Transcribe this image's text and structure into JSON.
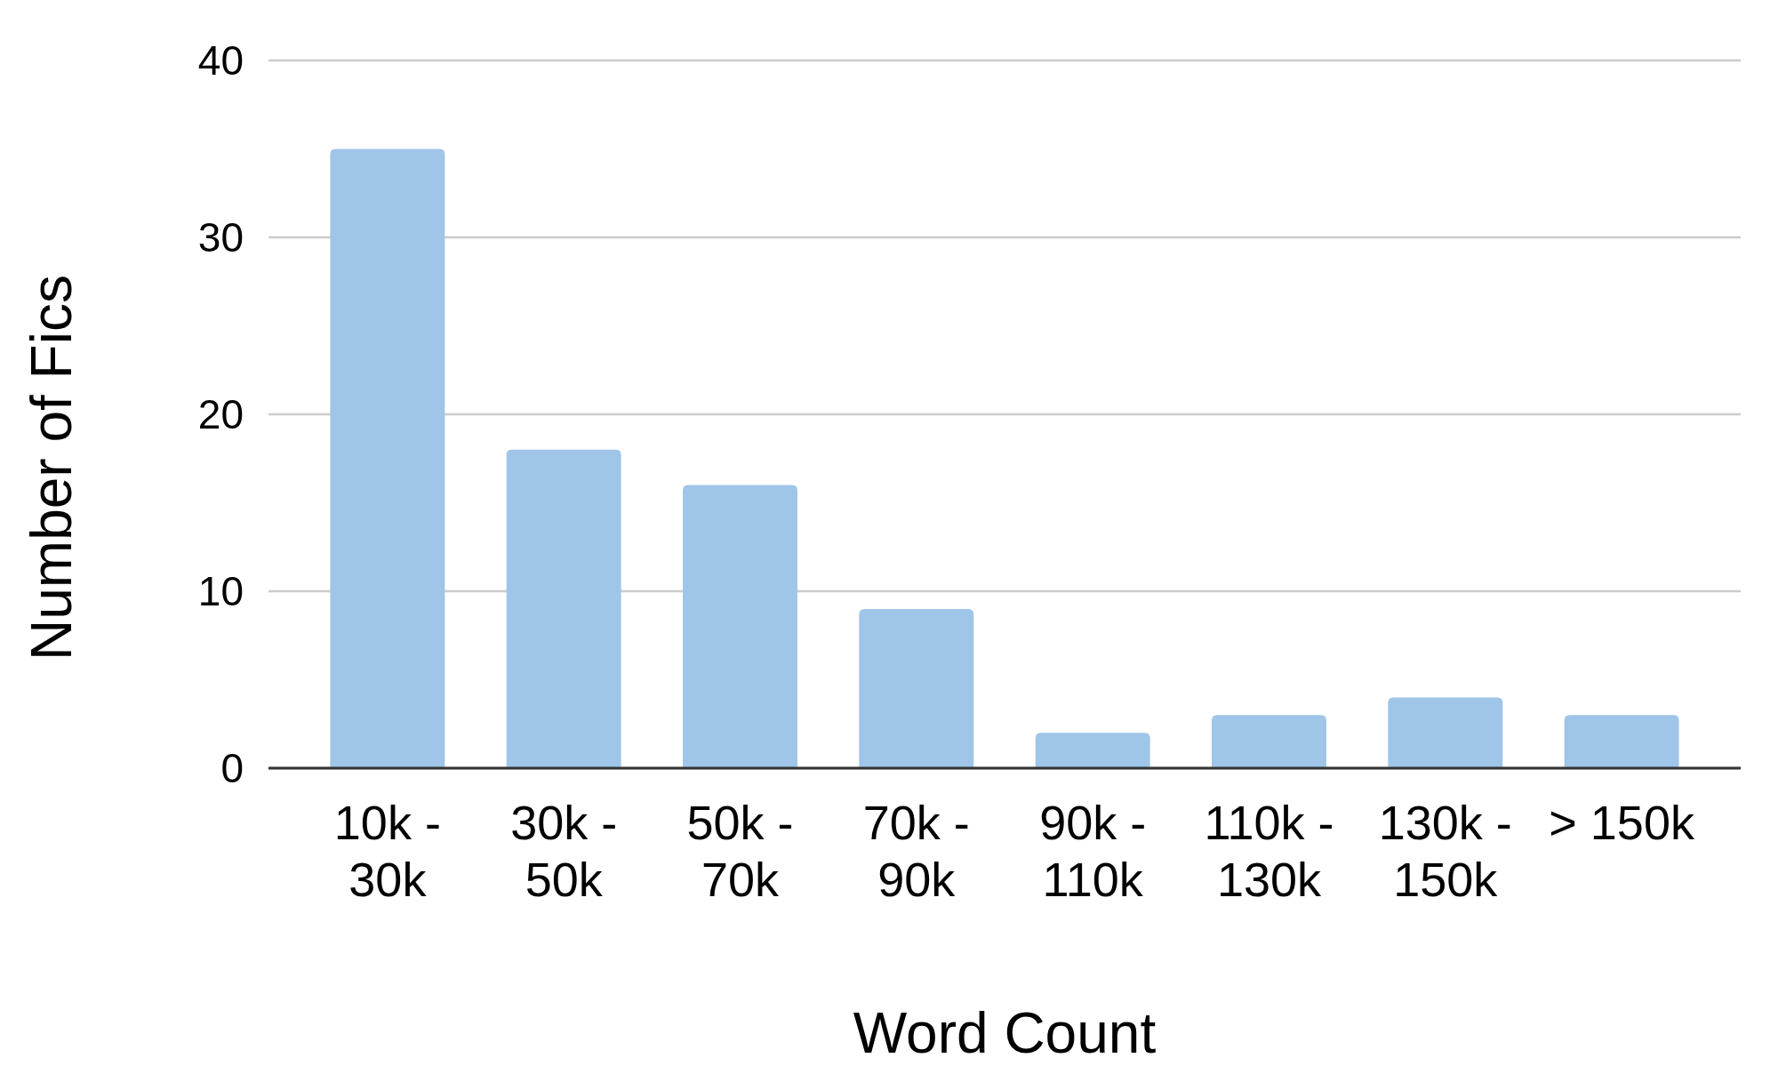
{
  "chart_data": {
    "type": "bar",
    "xlabel": "Word Count",
    "ylabel": "Number of Fics",
    "categories": [
      "10k - 30k",
      "30k - 50k",
      "50k - 70k",
      "70k - 90k",
      "90k - 110k",
      "110k - 130k",
      "130k - 150k",
      "> 150k"
    ],
    "values": [
      35,
      18,
      16,
      9,
      2,
      3,
      4,
      3
    ],
    "color": "#9fc5e8",
    "ylim": [
      0,
      40
    ],
    "yticks": [
      0,
      10,
      20,
      30,
      40
    ],
    "grid": "y"
  }
}
